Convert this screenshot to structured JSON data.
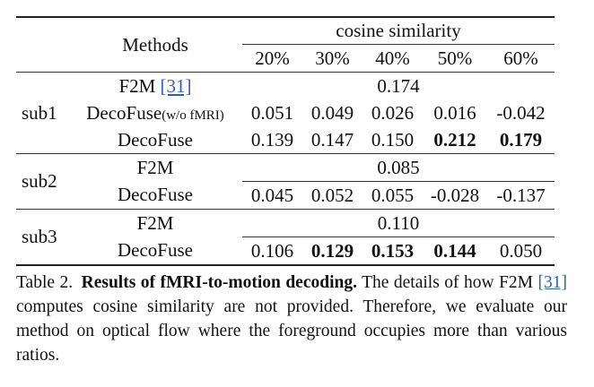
{
  "table": {
    "header": {
      "methods_label": "Methods",
      "group_label": "cosine similarity",
      "ratios": [
        "20%",
        "30%",
        "40%",
        "50%",
        "60%"
      ]
    },
    "rows": [
      {
        "subject": "sub1",
        "method": "F2M",
        "cite": "[31]",
        "merged": "0.174"
      },
      {
        "subject": "",
        "method": "DecoFuse",
        "method_suffix": "(w/o fMRI)",
        "values": [
          "0.051",
          "0.049",
          "0.026",
          "0.016",
          "-0.042"
        ]
      },
      {
        "subject": "",
        "method": "DecoFuse",
        "values": [
          "0.139",
          "0.147",
          "0.150",
          "0.212",
          "0.179"
        ],
        "bold": [
          false,
          false,
          false,
          true,
          true
        ]
      },
      {
        "subject": "sub2",
        "method": "F2M",
        "merged": "0.085"
      },
      {
        "subject": "",
        "method": "DecoFuse",
        "values": [
          "0.045",
          "0.052",
          "0.055",
          "-0.028",
          "-0.137"
        ]
      },
      {
        "subject": "sub3",
        "method": "F2M",
        "merged": "0.110"
      },
      {
        "subject": "",
        "method": "DecoFuse",
        "values": [
          "0.106",
          "0.129",
          "0.153",
          "0.144",
          "0.050"
        ],
        "bold": [
          false,
          true,
          true,
          true,
          false
        ]
      }
    ]
  },
  "caption": {
    "label": "Table 2.",
    "title": "Results of fMRI-to-motion decoding.",
    "text_before_cite": "The details of how F2M",
    "cite": "[31]",
    "text_after_cite": "computes cosine similarity are not provided. Therefore, we evaluate our method on optical flow where the foreground occupies more than various ratios."
  }
}
